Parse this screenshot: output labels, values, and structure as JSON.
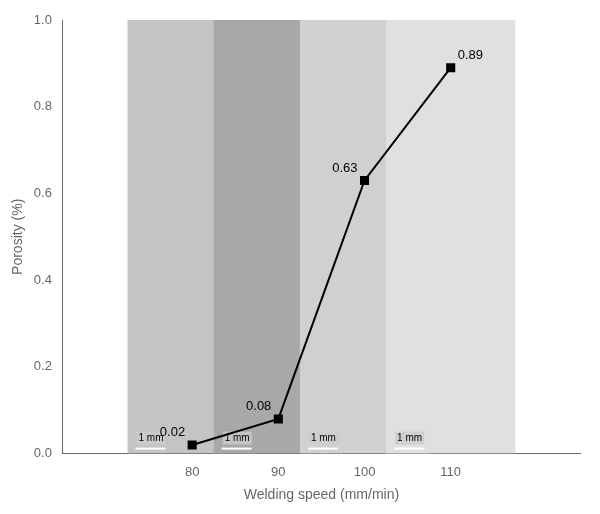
{
  "chart_data": {
    "type": "line",
    "xlabel": "Welding speed (mm/min)",
    "ylabel": "Porosity (%)",
    "x": [
      80,
      90,
      100,
      110
    ],
    "values": [
      0.02,
      0.08,
      0.63,
      0.89
    ],
    "color": "black",
    "marker": "square",
    "xlim": [
      65,
      125
    ],
    "xticks": [
      80,
      90,
      100,
      110
    ],
    "ylim": [
      0.0,
      1.0
    ],
    "yticks": [
      {
        "value": 0.0,
        "label": "0.0"
      },
      {
        "value": 0.2,
        "label": "0.2"
      },
      {
        "value": 0.4,
        "label": "0.4"
      },
      {
        "value": 0.6,
        "label": "0.6"
      },
      {
        "value": 0.8,
        "label": "0.8"
      },
      {
        "value": 1.0,
        "label": "1.0"
      }
    ],
    "grid": false,
    "data_labels": true,
    "annotations": [
      {
        "x": 80,
        "text": "1 mm"
      },
      {
        "x": 90,
        "text": "1 mm"
      },
      {
        "x": 100,
        "text": "1 mm"
      },
      {
        "x": 110,
        "text": "1 mm"
      }
    ]
  }
}
